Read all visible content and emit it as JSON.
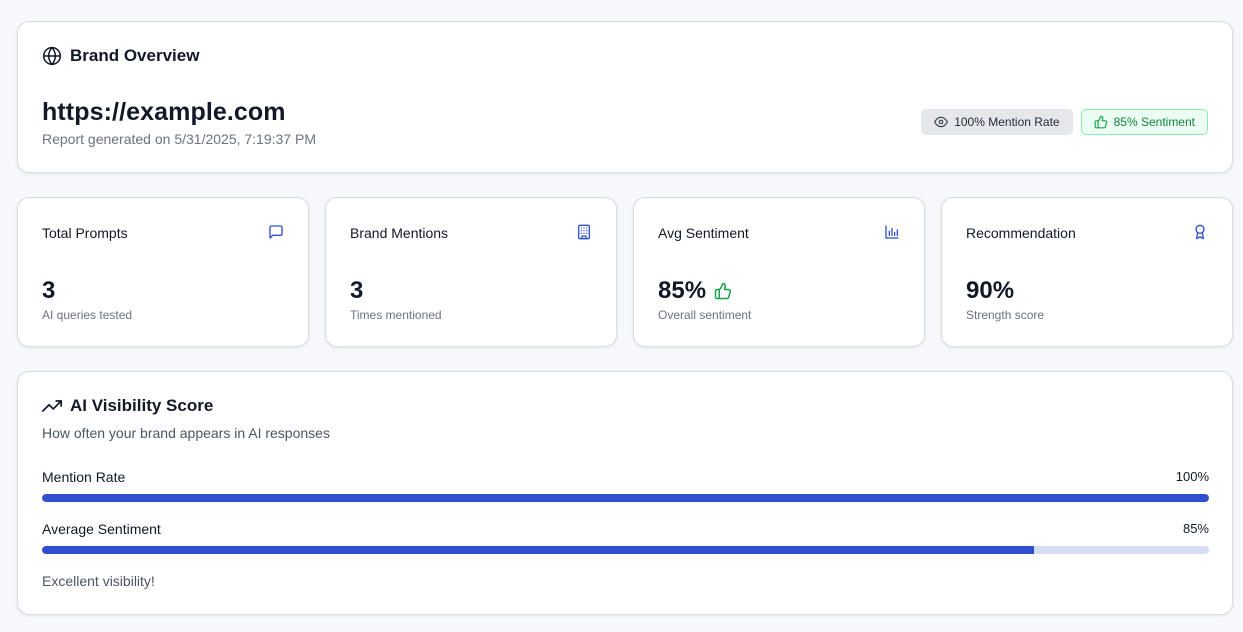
{
  "overview": {
    "title": "Brand Overview",
    "url": "https://example.com",
    "generated": "Report generated on 5/31/2025, 7:19:37 PM",
    "badges": [
      {
        "label": "100% Mention Rate",
        "icon": "eye-icon"
      },
      {
        "label": "85% Sentiment",
        "icon": "thumbs-up-icon"
      }
    ]
  },
  "stats": [
    {
      "label": "Total Prompts",
      "value": "3",
      "sub": "AI queries tested",
      "icon": "message-square-icon"
    },
    {
      "label": "Brand Mentions",
      "value": "3",
      "sub": "Times mentioned",
      "icon": "building-icon"
    },
    {
      "label": "Avg Sentiment",
      "value": "85%",
      "sub": "Overall sentiment",
      "icon": "bar-chart-icon"
    },
    {
      "label": "Recommendation",
      "value": "90%",
      "sub": "Strength score",
      "icon": "award-icon"
    }
  ],
  "visibility": {
    "title": "AI Visibility Score",
    "subtitle": "How often your brand appears in AI responses",
    "metrics": [
      {
        "label": "Mention Rate",
        "value": "100%",
        "fraction": 1.0
      },
      {
        "label": "Average Sentiment",
        "value": "85%",
        "fraction": 0.85
      }
    ],
    "note": "Excellent visibility!"
  },
  "colors": {
    "accent": "#2f4fce",
    "track": "#d6dcf4",
    "positive": "#16a34a"
  }
}
